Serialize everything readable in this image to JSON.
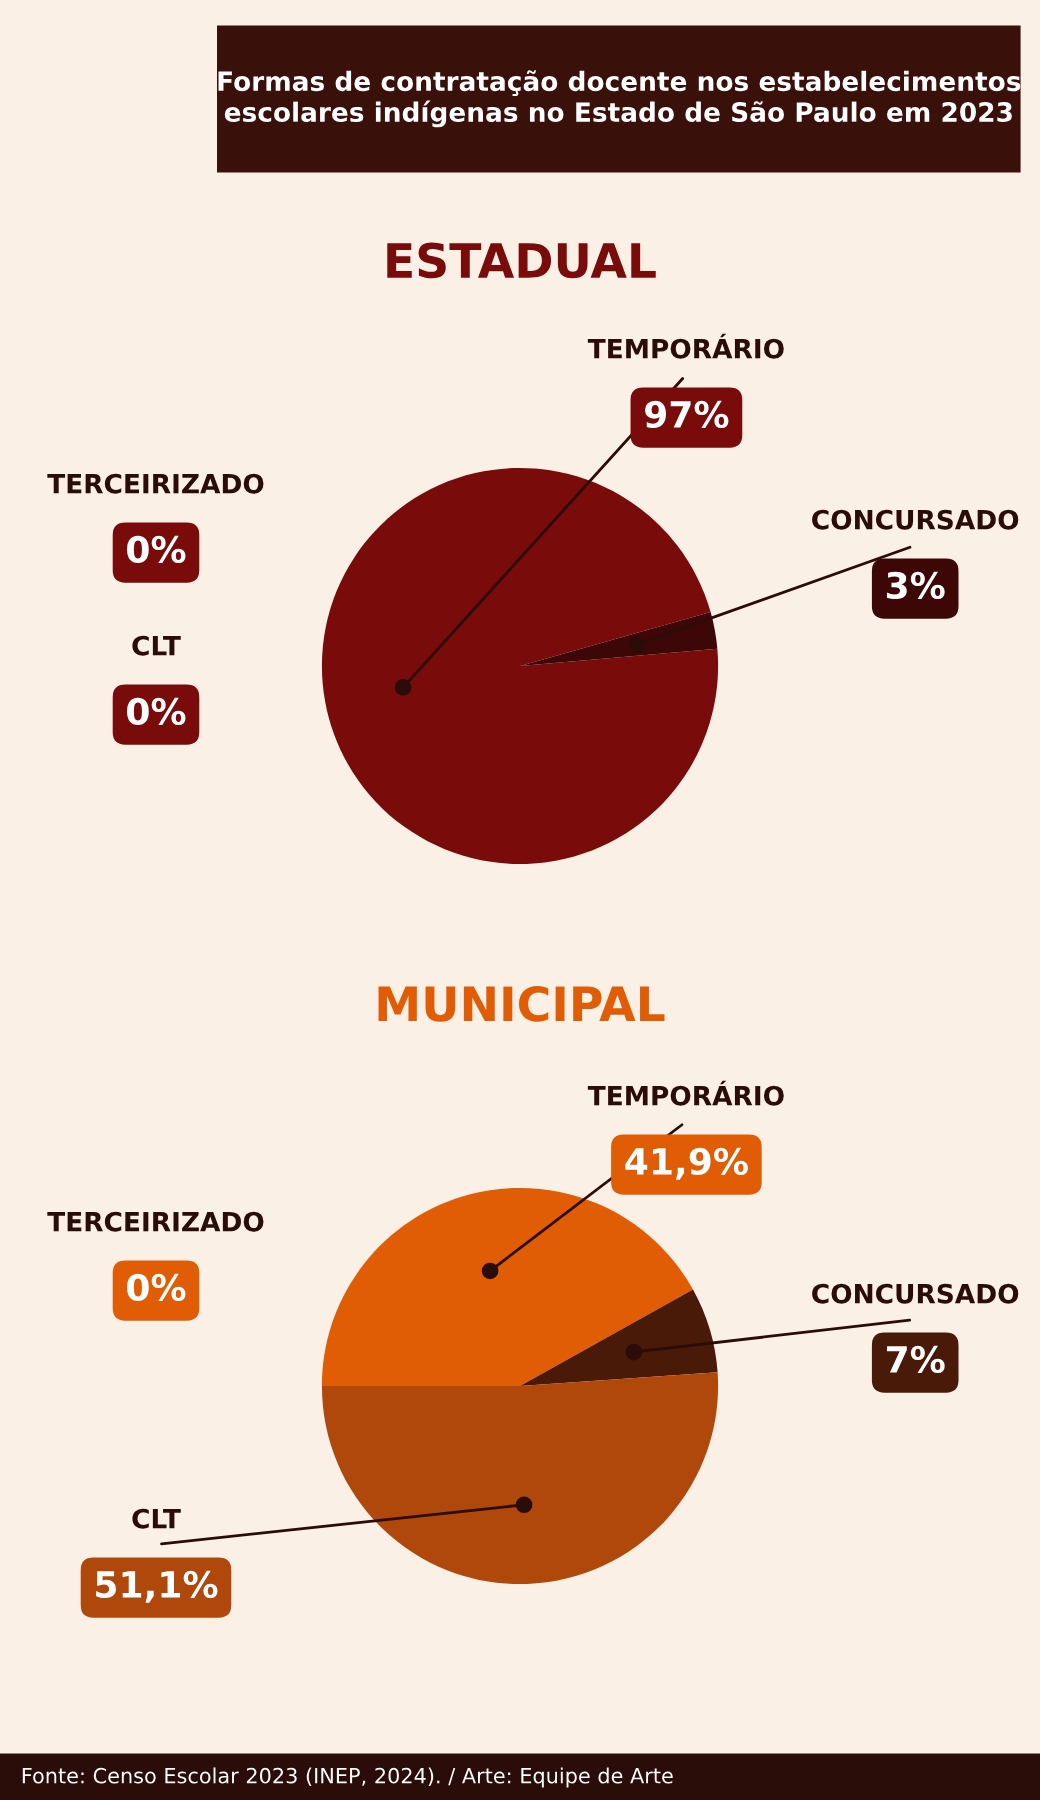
{
  "chart_data": [
    {
      "type": "pie",
      "title": "Formas de contratação docente nos estabelecimentos escolares indígenas no Estado de São Paulo em 2023",
      "subtitle": "ESTADUAL",
      "categories": [
        "TEMPORÁRIO",
        "CONCURSADO",
        "TERCEIRIZADO",
        "CLT"
      ],
      "values": [
        97,
        3,
        0,
        0
      ],
      "value_labels": [
        "97%",
        "3%",
        "0%",
        "0%"
      ],
      "colors": [
        "#7a0b0b",
        "#3d0707",
        "#7a0b0b",
        "#7a0b0b"
      ]
    },
    {
      "type": "pie",
      "title": "MUNICIPAL",
      "categories": [
        "TEMPORÁRIO",
        "CONCURSADO",
        "TERCEIRIZADO",
        "CLT"
      ],
      "values": [
        41.9,
        7,
        0,
        51.1
      ],
      "value_labels": [
        "41,9%",
        "7%",
        "0%",
        "51,1%"
      ],
      "colors": [
        "#e05c05",
        "#4a1a08",
        "#e05c05",
        "#b0480c"
      ],
      "annotations": [
        "Fonte: Censo Escolar 2023 (INEP, 2024). / Arte: Equipe de Arte"
      ]
    }
  ]
}
